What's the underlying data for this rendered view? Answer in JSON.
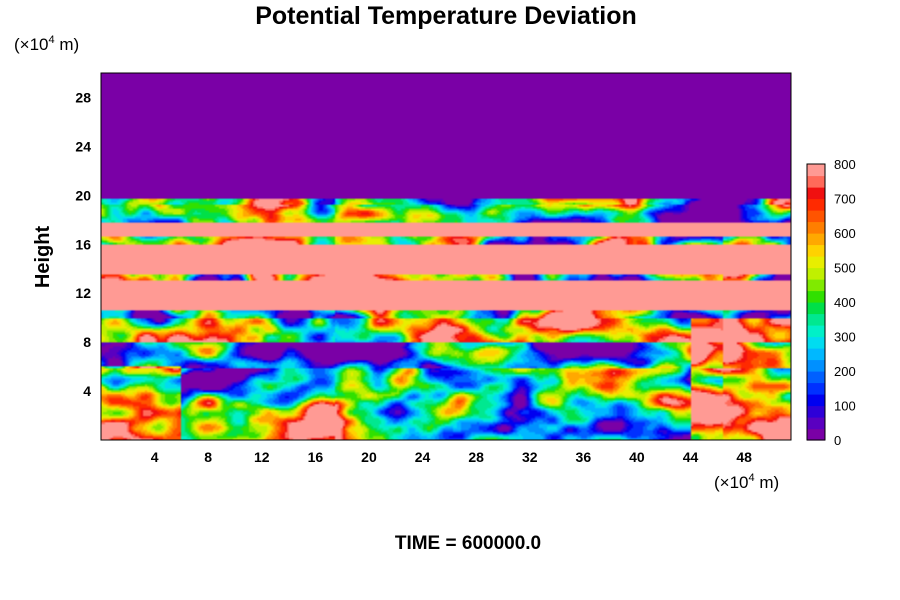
{
  "chart_data": {
    "type": "heatmap",
    "title": "Potential Temperature Deviation",
    "ylabel": "Height",
    "xlabel": "",
    "y_unit": {
      "prefix": "(×10",
      "sup": "4",
      "suffix": " m)"
    },
    "x_unit": {
      "prefix": "(×10",
      "sup": "4",
      "suffix": " m)"
    },
    "xlim": [
      0,
      51.5
    ],
    "ylim": [
      0,
      30
    ],
    "xticks": [
      4,
      8,
      12,
      16,
      20,
      24,
      28,
      32,
      36,
      40,
      44,
      48
    ],
    "yticks": [
      4,
      8,
      12,
      16,
      20,
      24,
      28
    ],
    "colorbar": {
      "min": 0,
      "max": 800,
      "levels": 24,
      "ticks": [
        0,
        100,
        200,
        300,
        400,
        500,
        600,
        700,
        800
      ],
      "colors": [
        "#7a00a6",
        "#5a00c0",
        "#2e00d8",
        "#0000f0",
        "#0030ff",
        "#0060ff",
        "#0090ff",
        "#00b8ff",
        "#00dcf0",
        "#00f0c8",
        "#00e890",
        "#00e048",
        "#30e000",
        "#80ea00",
        "#c0f000",
        "#e8ee00",
        "#ffd200",
        "#ffa800",
        "#ff7e00",
        "#ff5400",
        "#ff2a00",
        "#f01010",
        "#ff6a5a",
        "#ff9a94"
      ]
    },
    "structure": {
      "background_value": 0,
      "upper_quiet_layer": [
        19.5,
        30
      ],
      "bands": [
        {
          "y": [
            10.6,
            13.0
          ],
          "value": 800
        },
        {
          "y": [
            13.6,
            16.0
          ],
          "value": 800
        },
        {
          "y": [
            16.6,
            17.8
          ],
          "value": 800
        }
      ],
      "lower_turbulent_layer": [
        0,
        10
      ]
    }
  },
  "footer": {
    "time_label": "TIME = 600000.0"
  }
}
